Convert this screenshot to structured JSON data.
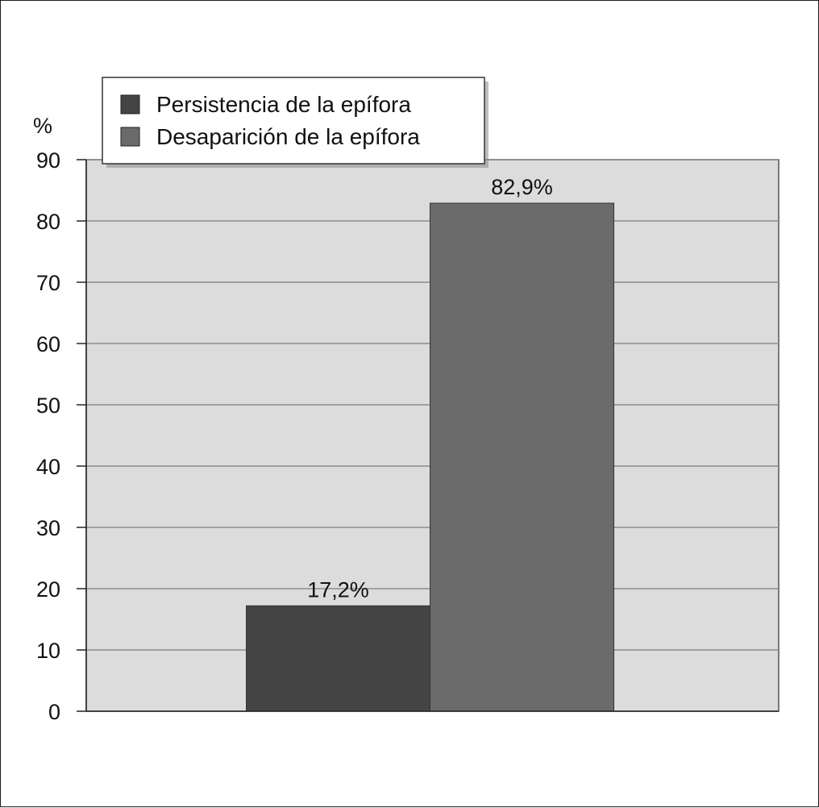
{
  "chart_data": {
    "type": "bar",
    "categories": [
      ""
    ],
    "series": [
      {
        "name": "Persistencia de la epífora",
        "values": [
          17.2
        ],
        "label": "17,2%",
        "color": "#444444"
      },
      {
        "name": "Desaparición de la epífora",
        "values": [
          82.9
        ],
        "label": "82,9%",
        "color": "#6b6b6b"
      }
    ],
    "title": "",
    "xlabel": "",
    "ylabel": "%",
    "ylim": [
      0,
      90
    ],
    "yticks": [
      0,
      10,
      20,
      30,
      40,
      50,
      60,
      70,
      80,
      90
    ],
    "grid": true,
    "legend_position": "top-left",
    "plot_background": "#dcdcdc"
  }
}
